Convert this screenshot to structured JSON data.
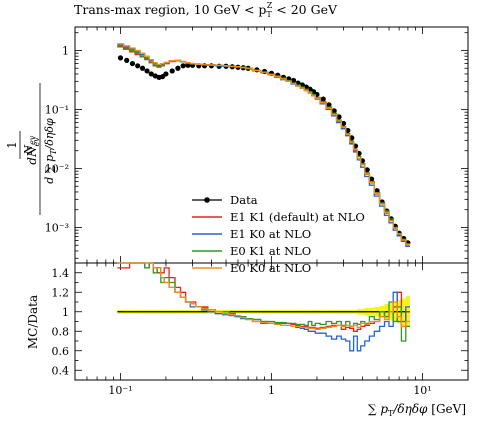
{
  "chart_data": {
    "type": "line",
    "title": "Trans-max region, 10 GeV < p_T^Z < 20 GeV",
    "title_parts": {
      "main": "Trans-max region, 10 GeV < p",
      "sub": "T",
      "sup": "Z",
      "tail": " < 20 GeV"
    },
    "ylabel_main": "1/N_ev dN_ev/d∑p_T/dηdφ",
    "ylabel_ratio": "MC/Data",
    "xlabel": "∑ p_T/δηδφ [GeV]",
    "x_scale": "log",
    "xlim": [
      0.05,
      20
    ],
    "ylim_main": [
      0.00025,
      2.5
    ],
    "ylim_ratio": [
      0.3,
      1.5
    ],
    "x_tick_labels": [
      "10⁻¹",
      "1",
      "10¹"
    ],
    "y_tick_labels_main": [
      "1",
      "10⁻¹",
      "10⁻²",
      "10⁻³"
    ],
    "y_tick_labels_ratio": [
      "0.4",
      "0.6",
      "0.8",
      "1",
      "1.2",
      "1.4"
    ],
    "legend_position": "lower-left",
    "x": [
      0.1,
      0.11,
      0.12,
      0.13,
      0.14,
      0.15,
      0.16,
      0.17,
      0.18,
      0.19,
      0.2,
      0.22,
      0.24,
      0.26,
      0.28,
      0.3,
      0.33,
      0.36,
      0.4,
      0.45,
      0.5,
      0.55,
      0.6,
      0.65,
      0.7,
      0.8,
      0.9,
      1.0,
      1.1,
      1.2,
      1.3,
      1.4,
      1.5,
      1.6,
      1.7,
      1.8,
      1.9,
      2.0,
      2.2,
      2.4,
      2.6,
      2.8,
      3.0,
      3.2,
      3.4,
      3.6,
      3.8,
      4.0,
      4.3,
      4.6,
      5.0,
      5.4,
      5.8,
      6.2,
      6.6,
      7.0,
      7.5,
      8.0
    ],
    "series": [
      {
        "name": "Data",
        "color": "#000000",
        "style": "points",
        "values": [
          0.75,
          0.68,
          0.6,
          0.55,
          0.5,
          0.45,
          0.4,
          0.37,
          0.35,
          0.36,
          0.4,
          0.45,
          0.5,
          0.55,
          0.56,
          0.56,
          0.55,
          0.55,
          0.55,
          0.54,
          0.54,
          0.53,
          0.52,
          0.51,
          0.5,
          0.47,
          0.44,
          0.41,
          0.38,
          0.35,
          0.33,
          0.31,
          0.28,
          0.26,
          0.24,
          0.22,
          0.2,
          0.18,
          0.15,
          0.12,
          0.095,
          0.075,
          0.058,
          0.044,
          0.033,
          0.024,
          0.018,
          0.0135,
          0.0095,
          0.0066,
          0.0042,
          0.0027,
          0.0019,
          0.0014,
          0.00105,
          0.0008,
          0.00065,
          0.00055
        ],
        "ratio": [
          1,
          1,
          1,
          1,
          1,
          1,
          1,
          1,
          1,
          1,
          1,
          1,
          1,
          1,
          1,
          1,
          1,
          1,
          1,
          1,
          1,
          1,
          1,
          1,
          1,
          1,
          1,
          1,
          1,
          1,
          1,
          1,
          1,
          1,
          1,
          1,
          1,
          1,
          1,
          1,
          1,
          1,
          1,
          1,
          1,
          1,
          1,
          1,
          1,
          1,
          1,
          1,
          1,
          1,
          1,
          1,
          1,
          1
        ],
        "ratio_band": [
          0.02,
          0.02,
          0.02,
          0.02,
          0.02,
          0.02,
          0.02,
          0.02,
          0.02,
          0.02,
          0.02,
          0.02,
          0.02,
          0.02,
          0.02,
          0.02,
          0.02,
          0.02,
          0.02,
          0.02,
          0.02,
          0.02,
          0.02,
          0.02,
          0.02,
          0.02,
          0.02,
          0.02,
          0.02,
          0.02,
          0.02,
          0.02,
          0.02,
          0.02,
          0.02,
          0.02,
          0.02,
          0.02,
          0.02,
          0.02,
          0.02,
          0.02,
          0.02,
          0.02,
          0.02,
          0.02,
          0.03,
          0.03,
          0.04,
          0.04,
          0.05,
          0.06,
          0.08,
          0.09,
          0.1,
          0.12,
          0.14,
          0.16
        ]
      },
      {
        "name": "E1 K1 (default) at NLO",
        "color": "#e8221c",
        "style": "step",
        "values": [
          1.15,
          1.05,
          0.95,
          0.85,
          0.78,
          0.7,
          0.62,
          0.55,
          0.52,
          0.55,
          0.6,
          0.65,
          0.68,
          0.65,
          0.62,
          0.6,
          0.58,
          0.57,
          0.57,
          0.56,
          0.55,
          0.54,
          0.53,
          0.52,
          0.5,
          0.46,
          0.43,
          0.39,
          0.36,
          0.33,
          0.3,
          0.28,
          0.25,
          0.23,
          0.21,
          0.19,
          0.17,
          0.155,
          0.13,
          0.105,
          0.082,
          0.063,
          0.049,
          0.037,
          0.027,
          0.02,
          0.015,
          0.0115,
          0.008,
          0.0057,
          0.0037,
          0.0025,
          0.0018,
          0.0013,
          0.001,
          0.00078,
          0.00062,
          0.00052
        ],
        "ratio": [
          1.45,
          1.45,
          1.5,
          1.5,
          1.5,
          1.45,
          1.5,
          1.45,
          1.4,
          1.4,
          1.45,
          1.35,
          1.25,
          1.2,
          1.1,
          1.1,
          1.05,
          1.05,
          1.02,
          1.0,
          1.0,
          0.98,
          0.95,
          0.95,
          0.93,
          0.92,
          0.9,
          0.88,
          0.88,
          0.88,
          0.88,
          0.87,
          0.86,
          0.85,
          0.85,
          0.84,
          0.84,
          0.83,
          0.84,
          0.85,
          0.86,
          0.86,
          0.82,
          0.84,
          0.83,
          0.8,
          0.82,
          0.85,
          0.86,
          0.88,
          0.9,
          1.0,
          0.95,
          1.0,
          1.05,
          1.2,
          0.9,
          1.0
        ]
      },
      {
        "name": "E1 K0 at NLO",
        "color": "#2166d9",
        "style": "step",
        "values": [
          1.25,
          1.15,
          1.05,
          0.95,
          0.85,
          0.75,
          0.68,
          0.6,
          0.56,
          0.58,
          0.62,
          0.66,
          0.67,
          0.64,
          0.61,
          0.59,
          0.58,
          0.57,
          0.56,
          0.55,
          0.54,
          0.53,
          0.52,
          0.51,
          0.49,
          0.45,
          0.42,
          0.39,
          0.35,
          0.32,
          0.3,
          0.27,
          0.25,
          0.23,
          0.21,
          0.19,
          0.17,
          0.15,
          0.125,
          0.1,
          0.078,
          0.06,
          0.047,
          0.036,
          0.026,
          0.019,
          0.014,
          0.0105,
          0.0073,
          0.0052,
          0.0034,
          0.0023,
          0.0016,
          0.0012,
          0.0009,
          0.00072,
          0.00058,
          0.00048
        ],
        "ratio": [
          1.55,
          1.55,
          1.6,
          1.55,
          1.55,
          1.5,
          1.55,
          1.45,
          1.45,
          1.35,
          1.3,
          1.25,
          1.2,
          1.15,
          1.1,
          1.05,
          1.05,
          1.02,
          1.0,
          0.98,
          0.97,
          0.96,
          0.95,
          0.93,
          0.92,
          0.9,
          0.88,
          0.88,
          0.87,
          0.86,
          0.86,
          0.85,
          0.84,
          0.83,
          0.82,
          0.8,
          0.8,
          0.78,
          0.78,
          0.75,
          0.72,
          0.75,
          0.72,
          0.7,
          0.6,
          0.75,
          0.6,
          0.65,
          0.7,
          0.75,
          0.8,
          0.85,
          0.9,
          0.85,
          1.2,
          0.9,
          0.85,
          1.05
        ]
      },
      {
        "name": "E0 K1 at NLO",
        "color": "#2a9a25",
        "style": "step",
        "values": [
          1.2,
          1.1,
          1.0,
          0.9,
          0.8,
          0.72,
          0.64,
          0.57,
          0.53,
          0.56,
          0.6,
          0.65,
          0.67,
          0.64,
          0.61,
          0.59,
          0.58,
          0.57,
          0.57,
          0.56,
          0.55,
          0.54,
          0.53,
          0.52,
          0.5,
          0.46,
          0.43,
          0.4,
          0.37,
          0.34,
          0.31,
          0.28,
          0.26,
          0.24,
          0.22,
          0.2,
          0.18,
          0.16,
          0.135,
          0.11,
          0.086,
          0.066,
          0.051,
          0.039,
          0.029,
          0.021,
          0.016,
          0.012,
          0.0084,
          0.006,
          0.0039,
          0.0026,
          0.0019,
          0.0014,
          0.001,
          0.00079,
          0.00063,
          0.00053
        ],
        "ratio": [
          1.5,
          1.5,
          1.55,
          1.5,
          1.5,
          1.45,
          1.55,
          1.4,
          1.45,
          1.3,
          1.35,
          1.3,
          1.2,
          1.15,
          1.1,
          1.08,
          1.05,
          1.04,
          1.02,
          1.0,
          1.0,
          0.98,
          0.96,
          0.95,
          0.93,
          0.92,
          0.9,
          0.9,
          0.89,
          0.89,
          0.88,
          0.88,
          0.87,
          0.87,
          0.86,
          0.9,
          0.86,
          0.88,
          0.87,
          0.9,
          0.88,
          0.9,
          0.86,
          0.9,
          0.85,
          0.88,
          0.87,
          0.9,
          0.88,
          0.95,
          0.92,
          1.0,
          0.95,
          1.1,
          0.9,
          1.05,
          0.7,
          0.85
        ]
      },
      {
        "name": "E0 K0 at NLO",
        "color": "#f28e1c",
        "style": "step",
        "values": [
          1.3,
          1.2,
          1.1,
          1.0,
          0.9,
          0.8,
          0.7,
          0.62,
          0.58,
          0.6,
          0.63,
          0.67,
          0.68,
          0.65,
          0.62,
          0.6,
          0.58,
          0.57,
          0.57,
          0.56,
          0.55,
          0.54,
          0.53,
          0.51,
          0.5,
          0.46,
          0.43,
          0.39,
          0.36,
          0.33,
          0.3,
          0.28,
          0.25,
          0.23,
          0.21,
          0.19,
          0.17,
          0.155,
          0.13,
          0.105,
          0.082,
          0.064,
          0.05,
          0.038,
          0.028,
          0.021,
          0.015,
          0.0115,
          0.0081,
          0.0058,
          0.0038,
          0.0025,
          0.0018,
          0.0013,
          0.00098,
          0.00077,
          0.00061,
          0.00051
        ],
        "ratio": [
          1.6,
          1.55,
          1.6,
          1.55,
          1.55,
          1.5,
          1.5,
          1.45,
          1.45,
          1.35,
          1.3,
          1.25,
          1.2,
          1.15,
          1.1,
          1.08,
          1.05,
          1.03,
          1.02,
          1.0,
          0.98,
          0.97,
          0.96,
          0.94,
          0.92,
          0.9,
          0.89,
          0.88,
          0.87,
          0.86,
          0.86,
          0.85,
          0.85,
          0.84,
          0.84,
          0.83,
          0.83,
          0.82,
          0.83,
          0.84,
          0.85,
          0.86,
          0.85,
          0.86,
          0.85,
          0.86,
          0.84,
          0.88,
          0.87,
          0.9,
          0.9,
          0.95,
          0.92,
          1.0,
          1.1,
          0.95,
          0.85,
          0.9
        ]
      }
    ]
  }
}
